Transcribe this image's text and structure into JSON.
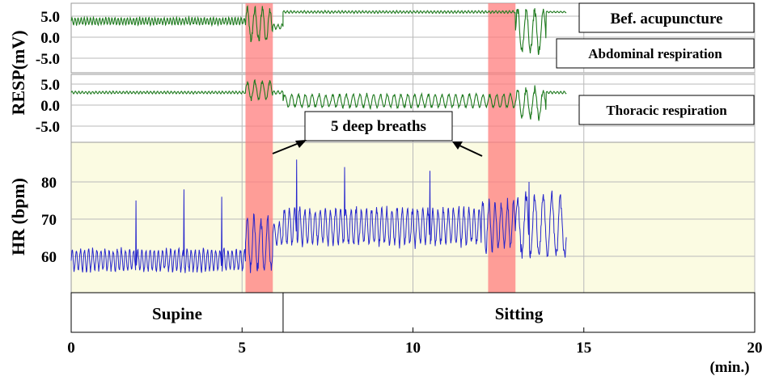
{
  "chart_data": {
    "type": "line",
    "panels": {
      "abdominal": {
        "ylabel": "RESP(mV)",
        "ytick_labels": [
          "5.0",
          "0.0",
          "-5.0"
        ],
        "yticks": [
          5,
          0,
          -5
        ],
        "ylim": [
          -9,
          8
        ],
        "header_label": "Bef. acupuncture",
        "label": "Abdominal respiration",
        "segments": [
          {
            "from": 0,
            "to": 5.1,
            "baseline": 3.8,
            "amp": 0.9,
            "period": 0.09
          },
          {
            "from": 5.1,
            "to": 5.9,
            "baseline": 3.0,
            "amp": 4.0,
            "period": 0.22
          },
          {
            "from": 5.9,
            "to": 6.2,
            "baseline": 2.5,
            "amp": 0.6,
            "period": 0.12
          },
          {
            "from": 6.2,
            "to": 13.0,
            "baseline": 6.0,
            "amp": 0.3,
            "period": 0.1
          },
          {
            "from": 13.0,
            "to": 13.9,
            "baseline": 1.5,
            "amp": 5.5,
            "period": 0.25
          },
          {
            "from": 13.9,
            "to": 14.5,
            "baseline": 6.0,
            "amp": 0.2,
            "period": 0.1
          }
        ]
      },
      "thoracic": {
        "yticks": [
          5,
          0,
          -5
        ],
        "ytick_labels": [
          "5.0",
          "0.0",
          "-5.0"
        ],
        "ylim": [
          -9,
          8
        ],
        "label": "Thoracic respiration",
        "segments": [
          {
            "from": 0,
            "to": 5.1,
            "baseline": 3.0,
            "amp": 0.3,
            "period": 0.1
          },
          {
            "from": 5.1,
            "to": 5.9,
            "baseline": 3.5,
            "amp": 2.2,
            "period": 0.22
          },
          {
            "from": 5.9,
            "to": 6.2,
            "baseline": 3.0,
            "amp": 0.4,
            "period": 0.12
          },
          {
            "from": 6.2,
            "to": 13.0,
            "baseline": 1.0,
            "amp": 1.6,
            "period": 0.2
          },
          {
            "from": 13.0,
            "to": 13.9,
            "baseline": 0.5,
            "amp": 3.5,
            "period": 0.25
          },
          {
            "from": 13.9,
            "to": 14.5,
            "baseline": 3.0,
            "amp": 0.3,
            "period": 0.1
          }
        ]
      },
      "hr": {
        "ylabel": "HR (bpm)",
        "yticks": [
          60,
          70,
          80
        ],
        "ytick_labels": [
          "60",
          "70",
          "80"
        ],
        "ylim": [
          50,
          90
        ],
        "segments": [
          {
            "from": 0,
            "to": 5.1,
            "baseline": 59,
            "amp": 3.0,
            "period": 0.12
          },
          {
            "from": 5.1,
            "to": 5.9,
            "baseline": 63,
            "amp": 7.5,
            "period": 0.2
          },
          {
            "from": 5.9,
            "to": 6.2,
            "baseline": 66,
            "amp": 3.0,
            "period": 0.15
          },
          {
            "from": 6.2,
            "to": 12.0,
            "baseline": 68,
            "amp": 5.0,
            "period": 0.15
          },
          {
            "from": 12.0,
            "to": 13.0,
            "baseline": 68,
            "amp": 6.5,
            "period": 0.18
          },
          {
            "from": 13.0,
            "to": 14.5,
            "baseline": 68,
            "amp": 8.5,
            "period": 0.25
          }
        ],
        "spikes": [
          {
            "x": 6.6,
            "y": 86
          },
          {
            "x": 8.0,
            "y": 84
          },
          {
            "x": 10.5,
            "y": 83
          },
          {
            "x": 13.4,
            "y": 80
          },
          {
            "x": 3.3,
            "y": 78
          },
          {
            "x": 1.9,
            "y": 75
          },
          {
            "x": 4.4,
            "y": 76
          }
        ]
      }
    },
    "xticks": [
      0,
      5,
      10,
      15,
      20
    ],
    "xtick_labels": [
      "0",
      "5",
      "10",
      "15",
      "20"
    ],
    "xlim": [
      0,
      20
    ],
    "xlabel": "(min.)",
    "highlight_intervals": [
      [
        5.1,
        5.9
      ],
      [
        12.2,
        13.0
      ]
    ],
    "highlight_color": "#ff7d7d",
    "background_color": "#fbfbe2",
    "trace_color_resp": "#1e7a1e",
    "trace_color_hr": "#2525cc",
    "annotation": {
      "text": "5 deep breaths"
    },
    "phases": [
      {
        "label": "Supine",
        "from": 0,
        "to": 6.2
      },
      {
        "label": "Sitting",
        "from": 6.2,
        "to": 20
      }
    ]
  }
}
